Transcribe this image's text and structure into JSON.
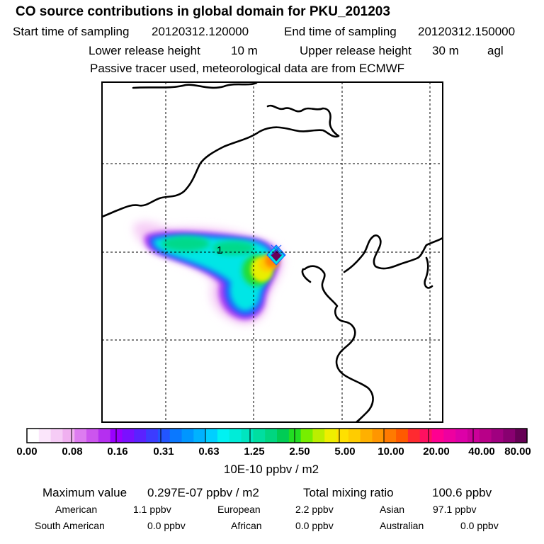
{
  "chart_data": {
    "type": "heatmap",
    "title": "CO  source contributions in global domain for PKU_201203",
    "header": {
      "start_label": "Start time of sampling",
      "start_value": "20120312.120000",
      "end_label": "End time of sampling",
      "end_value": "20120312.150000",
      "lower_label": "Lower release height",
      "lower_value": "10 m",
      "upper_label": "Upper release height",
      "upper_value": "30 m",
      "upper_unit": "agl",
      "tracer_note": "Passive tracer used, meteorological data are from ECMWF"
    },
    "receptor_label": "1",
    "colorbar": {
      "ticks": [
        "0.00",
        "0.08",
        "0.16",
        "0.31",
        "0.63",
        "1.25",
        "2.50",
        "5.00",
        "10.00",
        "20.00",
        "40.00",
        "80.00"
      ],
      "unit_label": "10E-10 ppbv / m2",
      "colors": [
        "#ffffff",
        "#fbe6fb",
        "#f6ccf6",
        "#f0b0f0",
        "#dd7cf0",
        "#cc55ee",
        "#b52ff0",
        "#9a00ff",
        "#7a10ff",
        "#5b22ff",
        "#3c3cff",
        "#2255ff",
        "#0a78ff",
        "#0096ff",
        "#00b2ff",
        "#00cfff",
        "#00f2f2",
        "#00ecd8",
        "#00e5c0",
        "#00dea0",
        "#00d680",
        "#00cc55",
        "#22dd22",
        "#77ee00",
        "#bbee00",
        "#eeee00",
        "#ffe000",
        "#ffcc00",
        "#ffb000",
        "#ff9600",
        "#ff7a00",
        "#ff5a00",
        "#ff2a30",
        "#ff1060",
        "#ff0090",
        "#ee00a0",
        "#dd00a8",
        "#cc0099",
        "#b80088",
        "#a00080",
        "#880070",
        "#660055"
      ]
    },
    "stats": {
      "max_label": "Maximum value",
      "max_value": "0.297E-07 ppbv / m2",
      "total_label": "Total mixing ratio",
      "total_value": "100.6 ppbv",
      "rows": [
        [
          {
            "name": "American",
            "value": "1.1 ppbv"
          },
          {
            "name": "European",
            "value": "2.2 ppbv"
          },
          {
            "name": "Asian",
            "value": "97.1 ppbv"
          }
        ],
        [
          {
            "name": "South American",
            "value": "0.0 ppbv"
          },
          {
            "name": "African",
            "value": "0.0 ppbv"
          },
          {
            "name": "Australian",
            "value": "0.0 ppbv"
          }
        ]
      ]
    }
  }
}
